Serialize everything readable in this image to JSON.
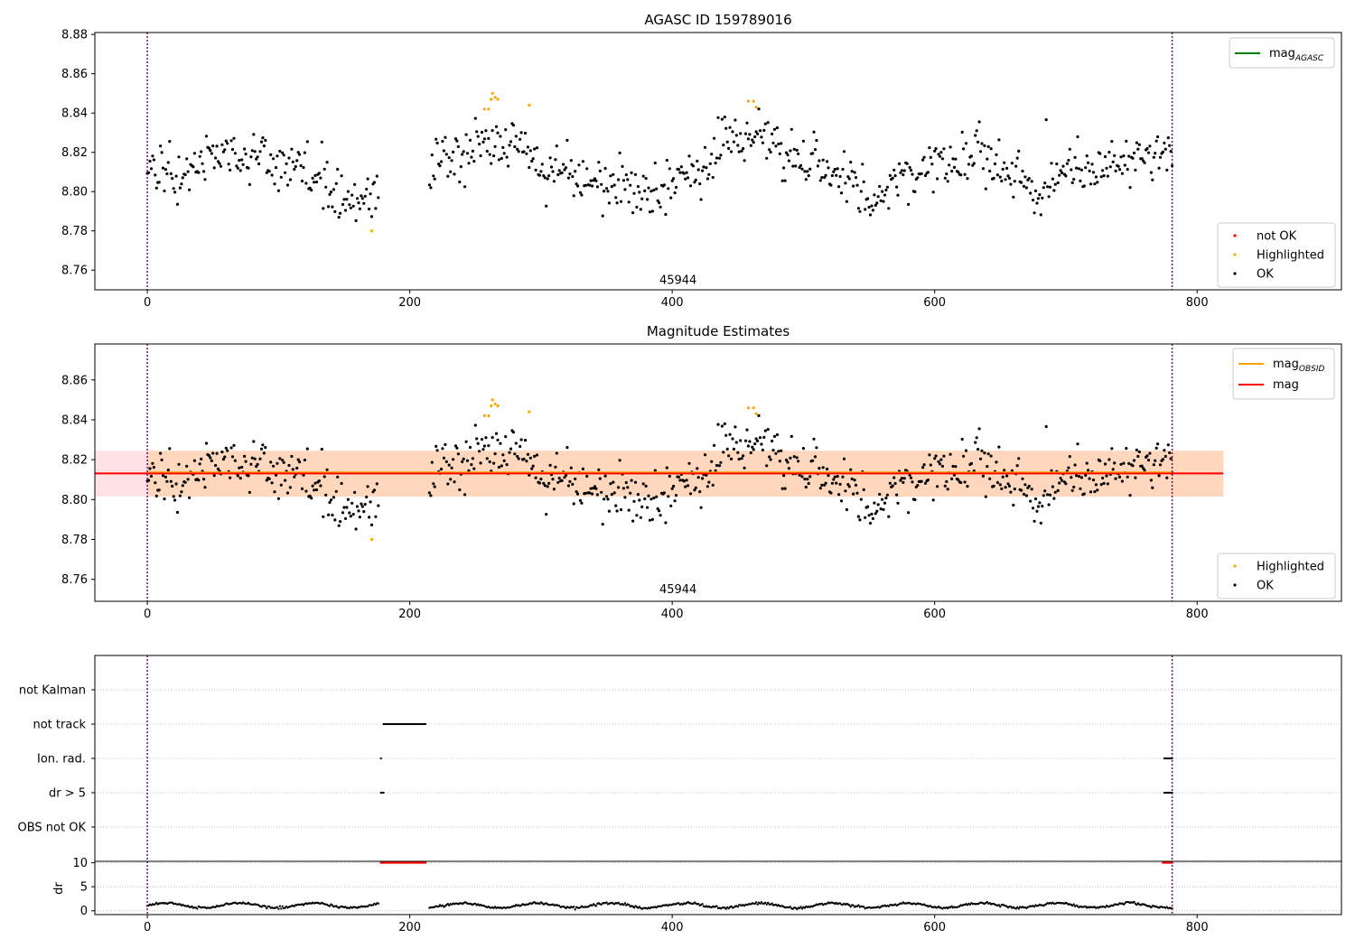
{
  "chart_data": [
    {
      "type": "scatter",
      "title": "AGASC ID 159789016",
      "xlim": [
        -40,
        910
      ],
      "ylim": [
        8.75,
        8.881
      ],
      "xticks": [
        0,
        200,
        400,
        600,
        800
      ],
      "yticks": [
        8.76,
        8.78,
        8.8,
        8.82,
        8.84,
        8.86,
        8.88
      ],
      "obsid_label": {
        "text": "45944",
        "x": 390,
        "y": 8.753
      },
      "vlines": [
        0,
        781
      ],
      "legend_lines": [
        {
          "name": "mag",
          "sub": "AGASC",
          "color": "#008000"
        }
      ],
      "legend_markers": [
        {
          "name": "not OK",
          "color": "#ff0000"
        },
        {
          "name": "Highlighted",
          "color": "#ffa500"
        },
        {
          "name": "OK",
          "color": "#000000"
        }
      ],
      "series": [
        {
          "name": "OK",
          "color": "#000000",
          "gaps": [
            [
              176,
              215
            ]
          ],
          "range": [
            0,
            781
          ],
          "trend": [
            [
              0,
              8.81
            ],
            [
              25,
              8.808
            ],
            [
              50,
              8.818
            ],
            [
              75,
              8.816
            ],
            [
              100,
              8.812
            ],
            [
              120,
              8.815
            ],
            [
              140,
              8.8
            ],
            [
              160,
              8.795
            ],
            [
              175,
              8.8
            ],
            [
              215,
              8.815
            ],
            [
              240,
              8.818
            ],
            [
              255,
              8.825
            ],
            [
              270,
              8.822
            ],
            [
              285,
              8.828
            ],
            [
              300,
              8.81
            ],
            [
              320,
              8.812
            ],
            [
              340,
              8.8
            ],
            [
              360,
              8.805
            ],
            [
              385,
              8.797
            ],
            [
              400,
              8.806
            ],
            [
              425,
              8.812
            ],
            [
              440,
              8.828
            ],
            [
              455,
              8.826
            ],
            [
              470,
              8.832
            ],
            [
              490,
              8.815
            ],
            [
              510,
              8.815
            ],
            [
              530,
              8.81
            ],
            [
              550,
              8.795
            ],
            [
              570,
              8.805
            ],
            [
              600,
              8.815
            ],
            [
              640,
              8.82
            ],
            [
              660,
              8.812
            ],
            [
              680,
              8.8
            ],
            [
              700,
              8.812
            ],
            [
              720,
              8.808
            ],
            [
              740,
              8.812
            ],
            [
              760,
              8.816
            ],
            [
              781,
              8.82
            ]
          ]
        },
        {
          "name": "Highlighted",
          "color": "#ffa500",
          "points": [
            [
              171,
              8.78
            ],
            [
              257,
              8.842
            ],
            [
              260,
              8.842
            ],
            [
              262,
              8.847
            ],
            [
              263,
              8.85
            ],
            [
              265,
              8.848
            ],
            [
              267,
              8.847
            ],
            [
              291,
              8.844
            ],
            [
              458,
              8.846
            ],
            [
              462,
              8.846
            ],
            [
              464,
              8.843
            ]
          ]
        }
      ]
    },
    {
      "type": "scatter",
      "title": "Magnitude Estimates",
      "xlim": [
        -40,
        910
      ],
      "ylim": [
        8.749,
        8.878
      ],
      "xticks": [
        0,
        200,
        400,
        600,
        800
      ],
      "yticks": [
        8.76,
        8.78,
        8.8,
        8.82,
        8.84,
        8.86
      ],
      "obsid_label": {
        "text": "45944",
        "x": 390,
        "y": 8.753
      },
      "vlines": [
        0,
        781
      ],
      "mag": 8.8131,
      "band_outer": [
        8.8015,
        8.8245,
        -40,
        820
      ],
      "band_inner": [
        8.8015,
        8.8245,
        0,
        820
      ],
      "legend_lines": [
        {
          "name": "mag",
          "sub": "OBSID",
          "color": "#ffa500"
        },
        {
          "name": "mag",
          "sub": "",
          "color": "#ff0000"
        }
      ],
      "legend_markers": [
        {
          "name": "Highlighted",
          "color": "#ffa500"
        },
        {
          "name": "OK",
          "color": "#000000"
        }
      ]
    },
    {
      "type": "scatter",
      "title": "",
      "xlim": [
        -40,
        910
      ],
      "categories": [
        "OBS not OK",
        "dr > 5",
        "Ion. rad.",
        "not track",
        "not Kalman"
      ],
      "flags": [
        {
          "category": "not track",
          "segments": [
            [
              180,
              212
            ]
          ]
        },
        {
          "category": "Ion. rad.",
          "segments": [
            [
              178,
              178
            ],
            [
              775,
              781
            ]
          ]
        },
        {
          "category": "dr > 5",
          "segments": [
            [
              178,
              180
            ],
            [
              775,
              781
            ]
          ]
        }
      ]
    },
    {
      "type": "scatter",
      "title": "",
      "ylabel": "dr",
      "xlim": [
        -40,
        910
      ],
      "ylim": [
        -0.8,
        10.3
      ],
      "xticks": [
        0,
        200,
        400,
        600,
        800
      ],
      "yticks": [
        0,
        5,
        10
      ],
      "clipped": {
        "value": 10,
        "segments": [
          [
            178,
            212
          ],
          [
            774,
            781
          ]
        ],
        "color": "#ff0000"
      },
      "series": [
        {
          "name": "dr",
          "color": "#000000",
          "mean": 1.1,
          "range": [
            0,
            781
          ],
          "gaps": [
            [
              176,
              215
            ]
          ]
        }
      ]
    }
  ]
}
